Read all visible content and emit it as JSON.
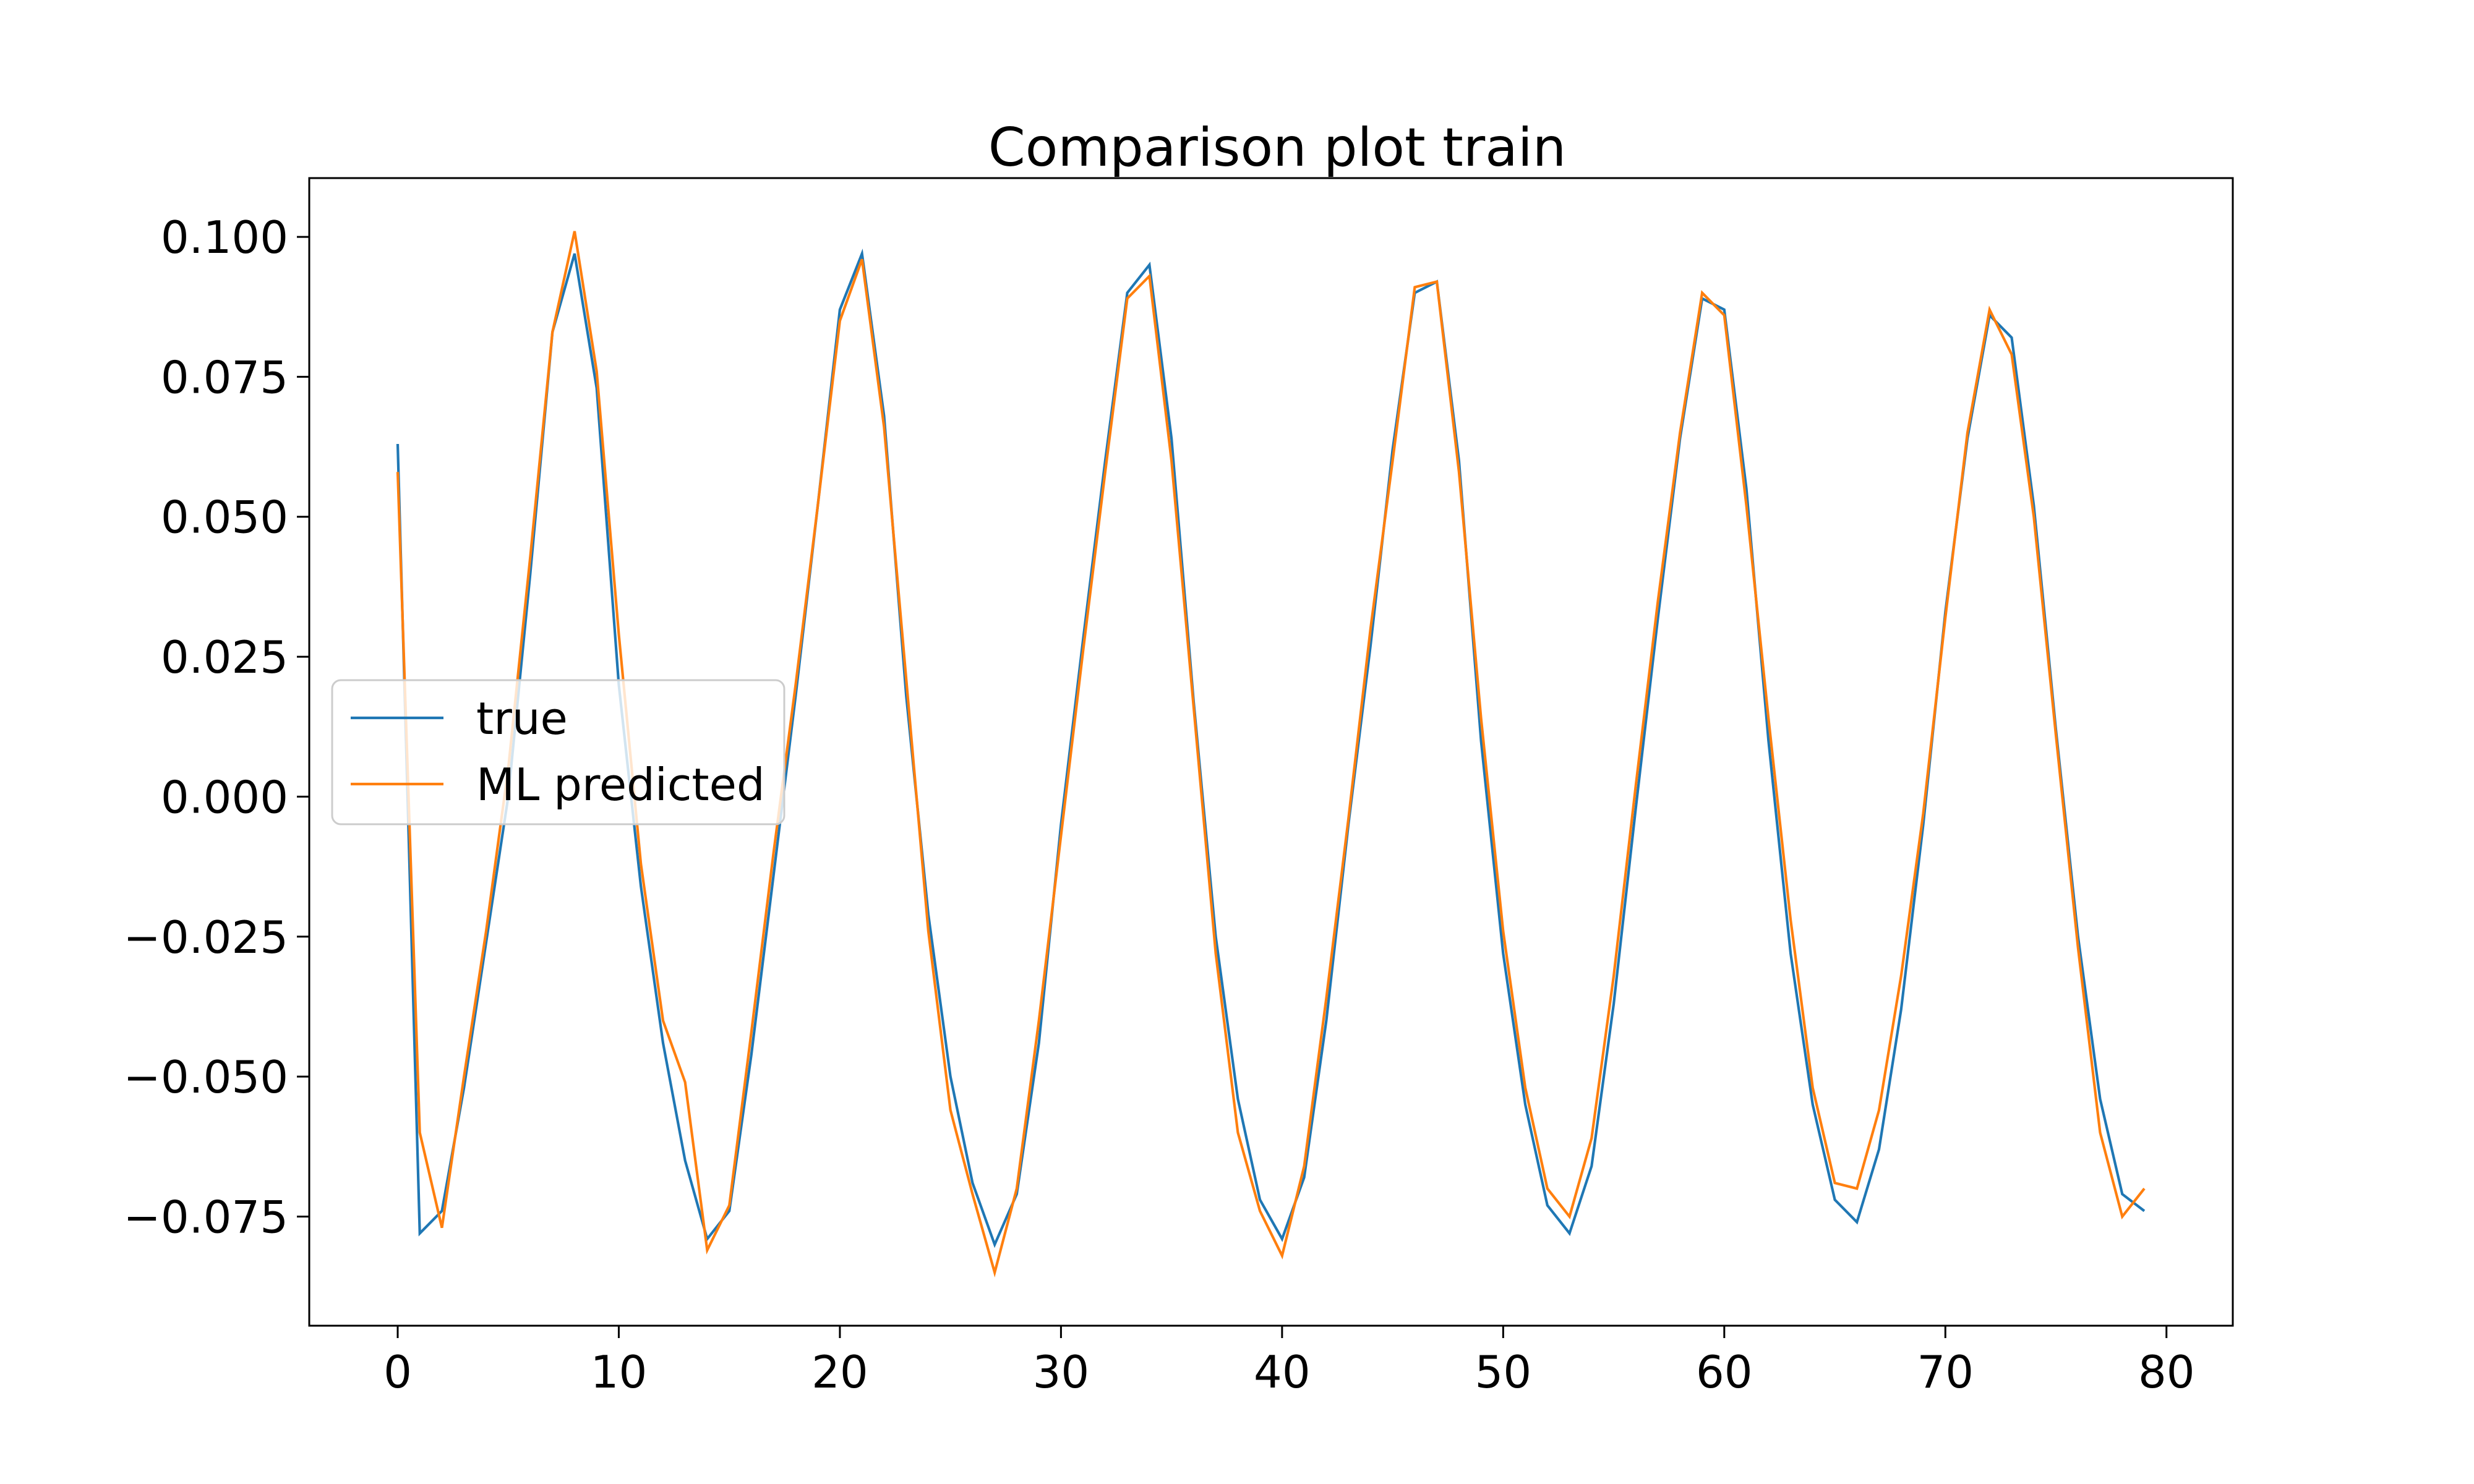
{
  "chart_data": {
    "type": "line",
    "title": "Comparison plot train",
    "xlabel": "",
    "ylabel": "",
    "xlim": [
      -4,
      83
    ],
    "ylim": [
      -0.0945,
      0.1105
    ],
    "xticks": [
      0,
      10,
      20,
      30,
      40,
      50,
      60,
      70,
      80
    ],
    "yticks": [
      -0.075,
      -0.05,
      -0.025,
      0.0,
      0.025,
      0.05,
      0.075,
      0.1
    ],
    "ytick_labels": [
      "−0.075",
      "−0.050",
      "−0.025",
      "0.000",
      "0.025",
      "0.050",
      "0.075",
      "0.100"
    ],
    "grid": false,
    "legend": "center-left",
    "x": [
      0,
      1,
      2,
      3,
      4,
      5,
      6,
      7,
      8,
      9,
      10,
      11,
      12,
      13,
      14,
      15,
      16,
      17,
      18,
      19,
      20,
      21,
      22,
      23,
      24,
      25,
      26,
      27,
      28,
      29,
      30,
      31,
      32,
      33,
      34,
      35,
      36,
      37,
      38,
      39,
      40,
      41,
      42,
      43,
      44,
      45,
      46,
      47,
      48,
      49,
      50,
      51,
      52,
      53,
      54,
      55,
      56,
      57,
      58,
      59,
      60,
      61,
      62,
      63,
      64,
      65,
      66,
      67,
      68,
      69,
      70,
      71,
      72,
      73,
      74,
      75,
      76,
      77,
      78,
      79
    ],
    "series": [
      {
        "name": "true",
        "color": "#1f77b4",
        "values": [
          0.063,
          -0.078,
          -0.074,
          -0.052,
          -0.026,
          0.0,
          0.04,
          0.083,
          0.097,
          0.073,
          0.02,
          -0.016,
          -0.044,
          -0.065,
          -0.079,
          -0.074,
          -0.046,
          -0.014,
          0.018,
          0.052,
          0.087,
          0.097,
          0.068,
          0.018,
          -0.021,
          -0.05,
          -0.069,
          -0.08,
          -0.071,
          -0.044,
          -0.005,
          0.028,
          0.06,
          0.09,
          0.095,
          0.064,
          0.017,
          -0.025,
          -0.054,
          -0.072,
          -0.079,
          -0.068,
          -0.04,
          -0.005,
          0.027,
          0.062,
          0.09,
          0.092,
          0.06,
          0.01,
          -0.028,
          -0.055,
          -0.073,
          -0.078,
          -0.066,
          -0.037,
          -0.002,
          0.032,
          0.064,
          0.089,
          0.087,
          0.055,
          0.01,
          -0.028,
          -0.055,
          -0.072,
          -0.076,
          -0.063,
          -0.038,
          -0.005,
          0.033,
          0.064,
          0.086,
          0.082,
          0.052,
          0.012,
          -0.025,
          -0.054,
          -0.071,
          -0.074
        ]
      },
      {
        "name": "ML predicted",
        "color": "#ff7f0e",
        "values": [
          0.058,
          -0.06,
          -0.077,
          -0.05,
          -0.024,
          0.005,
          0.043,
          0.083,
          0.101,
          0.076,
          0.029,
          -0.012,
          -0.04,
          -0.051,
          -0.081,
          -0.073,
          -0.042,
          -0.01,
          0.02,
          0.052,
          0.085,
          0.096,
          0.066,
          0.021,
          -0.024,
          -0.056,
          -0.071,
          -0.085,
          -0.07,
          -0.04,
          -0.007,
          0.026,
          0.058,
          0.089,
          0.093,
          0.06,
          0.016,
          -0.028,
          -0.06,
          -0.074,
          -0.082,
          -0.066,
          -0.036,
          -0.004,
          0.03,
          0.06,
          0.091,
          0.092,
          0.058,
          0.014,
          -0.024,
          -0.052,
          -0.07,
          -0.075,
          -0.061,
          -0.032,
          0.002,
          0.035,
          0.065,
          0.09,
          0.086,
          0.052,
          0.014,
          -0.022,
          -0.052,
          -0.069,
          -0.07,
          -0.056,
          -0.032,
          -0.003,
          0.032,
          0.065,
          0.087,
          0.079,
          0.05,
          0.011,
          -0.027,
          -0.06,
          -0.075,
          -0.07
        ]
      }
    ]
  }
}
